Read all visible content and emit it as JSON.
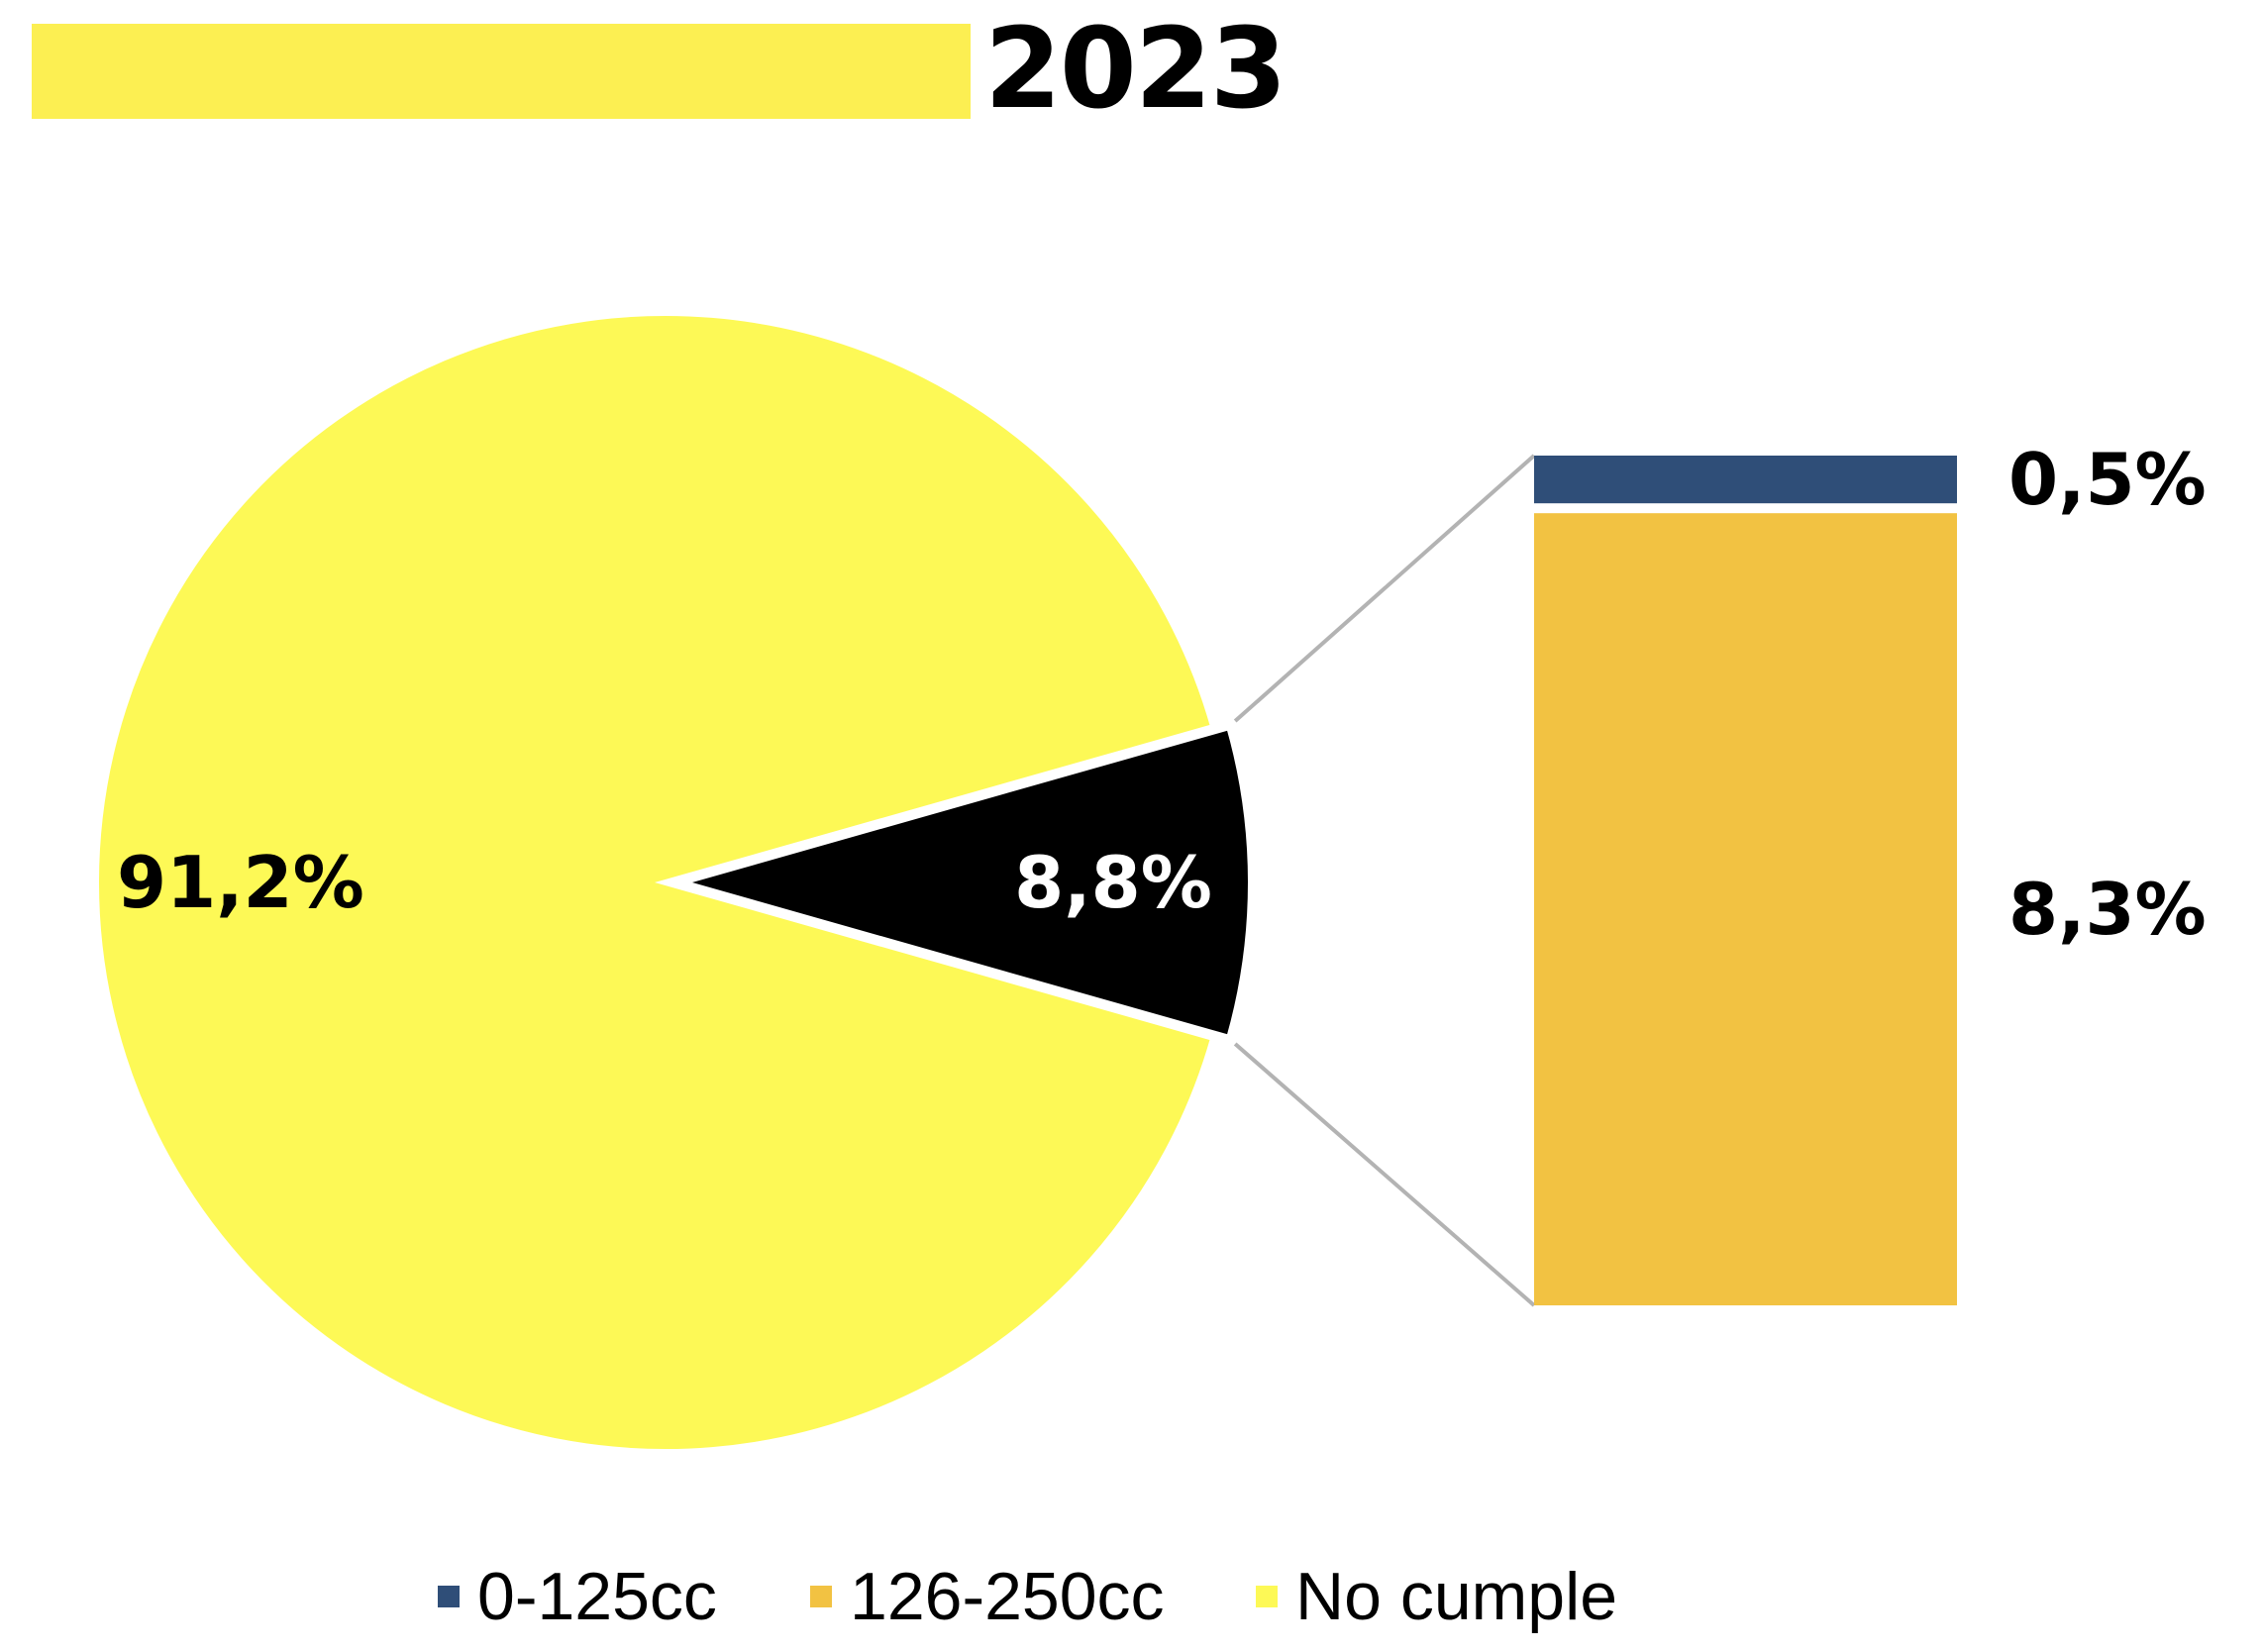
{
  "header": {
    "year": "2023"
  },
  "chart_data": {
    "type": "pie",
    "subtype": "bar-of-pie",
    "pie": {
      "slices": [
        {
          "key": "no_cumple",
          "value": 91.2,
          "label": "91,2%",
          "color": "#fdf956",
          "label_color": "#000000"
        },
        {
          "key": "grouped",
          "value": 8.8,
          "label": "8,8%",
          "color": "#000000",
          "label_color": "#ffffff"
        }
      ]
    },
    "bar": {
      "stack": [
        {
          "key": "cc_0_125",
          "value": 0.5,
          "label": "0,5%",
          "color": "#2f4e78"
        },
        {
          "key": "cc_126_250",
          "value": 8.3,
          "label": "8,3%",
          "color": "#f2c242"
        }
      ]
    },
    "legend": {
      "position": "bottom",
      "items": [
        {
          "label": "0-125cc",
          "color": "#2f4e78"
        },
        {
          "label": "126-250cc",
          "color": "#f2c242"
        },
        {
          "label": "No cumple",
          "color": "#fdf956"
        }
      ]
    },
    "connector_color": "#b3b3b3"
  }
}
